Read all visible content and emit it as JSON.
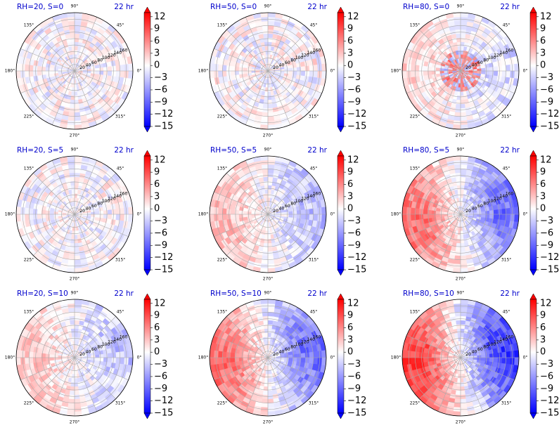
{
  "chart_data": {
    "type": "heatmap",
    "projection": "polar",
    "colormap": "bwr",
    "color_low": "#0000ff",
    "color_mid": "#ffffff",
    "color_high": "#ff0000",
    "colorbar_ticks": [
      "12",
      "9",
      "6",
      "3",
      "0",
      "−3",
      "−6",
      "−9",
      "−12",
      "−15"
    ],
    "colorbar_range": [
      -15,
      13
    ],
    "colorbar_extend": "both",
    "radial_tick_labels": [
      "20",
      "40",
      "60",
      "80",
      "100",
      "120",
      "140",
      "160"
    ],
    "radial_range": [
      0,
      180
    ],
    "angle_labels": [
      "90°",
      "45°",
      "0°",
      "315°",
      "270°",
      "225°",
      "180°",
      "135°"
    ],
    "time_label": "22 hr",
    "panels": [
      {
        "title": "RH=20, S=0",
        "rh": 20,
        "s": 0,
        "pattern": "noise",
        "strength": 0.12
      },
      {
        "title": "RH=50, S=0",
        "rh": 50,
        "s": 0,
        "pattern": "noise",
        "strength": 0.18
      },
      {
        "title": "RH=80, S=0",
        "rh": 80,
        "s": 0,
        "pattern": "core",
        "strength": 0.35
      },
      {
        "title": "RH=20, S=5",
        "rh": 20,
        "s": 5,
        "pattern": "noise",
        "strength": 0.12
      },
      {
        "title": "RH=50, S=5",
        "rh": 50,
        "s": 5,
        "pattern": "dipole",
        "strength": 0.25
      },
      {
        "title": "RH=80, S=5",
        "rh": 80,
        "s": 5,
        "pattern": "dipole",
        "strength": 0.55
      },
      {
        "title": "RH=20, S=10",
        "rh": 20,
        "s": 10,
        "pattern": "dipole",
        "strength": 0.22
      },
      {
        "title": "RH=50, S=10",
        "rh": 50,
        "s": 10,
        "pattern": "dipole",
        "strength": 0.55
      },
      {
        "title": "RH=80, S=10",
        "rh": 80,
        "s": 10,
        "pattern": "dipole",
        "strength": 0.75
      }
    ]
  }
}
